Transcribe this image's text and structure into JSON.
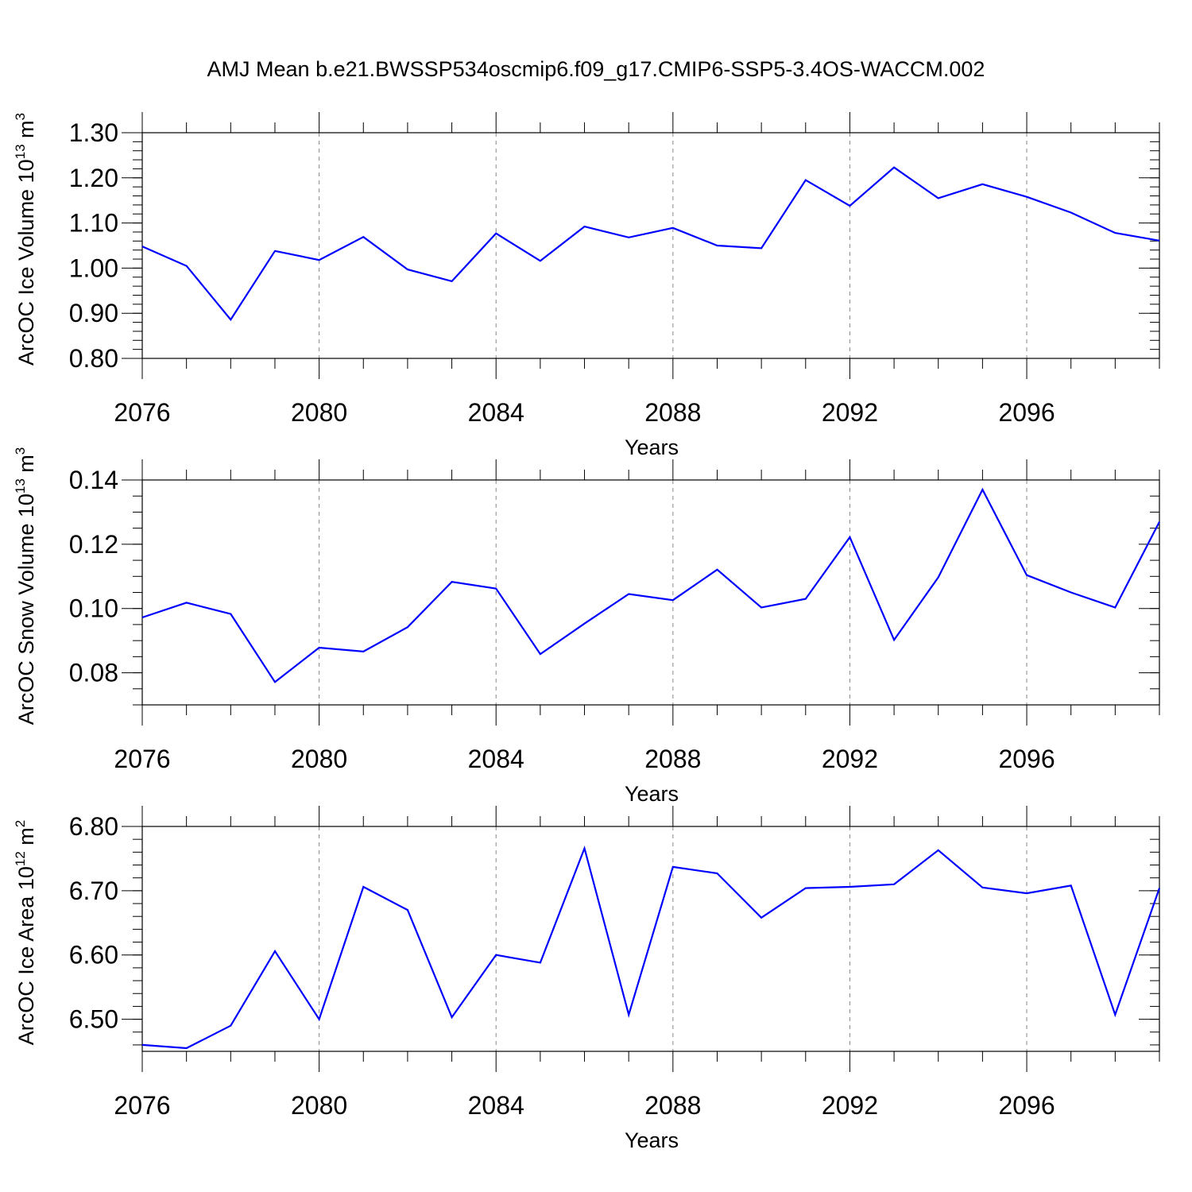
{
  "title": "AMJ Mean b.e21.BWSSP534oscmip6.f09_g17.CMIP6-SSP5-3.4OS-WACCM.002",
  "colors": {
    "line": "#0000ff",
    "axis": "#000000",
    "grid": "#888888"
  },
  "chart_data": [
    {
      "type": "line",
      "ylabel": "ArcOC Ice Volume 10",
      "ylabel_exp": "13",
      "ylabel_unit": " m",
      "ylabel_unit_exp": "3",
      "xlabel": "Years",
      "xlim": [
        2076,
        2099
      ],
      "ylim": [
        0.8,
        1.3
      ],
      "yticks": [
        0.8,
        0.9,
        1.0,
        1.1,
        1.2,
        1.3
      ],
      "ytick_labels": [
        "0.80",
        "0.90",
        "1.00",
        "1.10",
        "1.20",
        "1.30"
      ],
      "yminor": 0.02,
      "xticks": [
        2076,
        2080,
        2084,
        2088,
        2092,
        2096
      ],
      "xtick_labels": [
        "2076",
        "2080",
        "2084",
        "2088",
        "2092",
        "2096"
      ],
      "grid": "vertical dashed",
      "x": [
        2076,
        2077,
        2078,
        2079,
        2080,
        2081,
        2082,
        2083,
        2084,
        2085,
        2086,
        2087,
        2088,
        2089,
        2090,
        2091,
        2092,
        2093,
        2094,
        2095,
        2096,
        2097,
        2098,
        2099
      ],
      "values": [
        1.048,
        1.005,
        0.886,
        1.038,
        1.018,
        1.069,
        0.997,
        0.971,
        1.077,
        1.016,
        1.092,
        1.068,
        1.089,
        1.05,
        1.044,
        1.195,
        1.138,
        1.223,
        1.155,
        1.186,
        1.158,
        1.123,
        1.078,
        1.061
      ]
    },
    {
      "type": "line",
      "ylabel": "ArcOC Snow Volume 10",
      "ylabel_exp": "13",
      "ylabel_unit": " m",
      "ylabel_unit_exp": "3",
      "xlabel": "Years",
      "xlim": [
        2076,
        2099
      ],
      "ylim": [
        0.07,
        0.14
      ],
      "yticks": [
        0.08,
        0.1,
        0.12,
        0.14
      ],
      "ytick_labels": [
        "0.08",
        "0.10",
        "0.12",
        "0.14"
      ],
      "yminor": 0.005,
      "xticks": [
        2076,
        2080,
        2084,
        2088,
        2092,
        2096
      ],
      "xtick_labels": [
        "2076",
        "2080",
        "2084",
        "2088",
        "2092",
        "2096"
      ],
      "grid": "vertical dashed",
      "x": [
        2076,
        2077,
        2078,
        2079,
        2080,
        2081,
        2082,
        2083,
        2084,
        2085,
        2086,
        2087,
        2088,
        2089,
        2090,
        2091,
        2092,
        2093,
        2094,
        2095,
        2096,
        2097,
        2098,
        2099
      ],
      "values": [
        0.0972,
        0.1018,
        0.0983,
        0.0771,
        0.0878,
        0.0866,
        0.0942,
        0.1083,
        0.1062,
        0.0858,
        0.0953,
        0.1045,
        0.1026,
        0.1121,
        0.1003,
        0.103,
        0.1222,
        0.0902,
        0.1097,
        0.137,
        0.1104,
        0.105,
        0.1003,
        0.127
      ]
    },
    {
      "type": "line",
      "ylabel": "ArcOC Ice Area 10",
      "ylabel_exp": "12",
      "ylabel_unit": " m",
      "ylabel_unit_exp": "2",
      "xlabel": "Years",
      "xlim": [
        2076,
        2099
      ],
      "ylim": [
        6.45,
        6.8
      ],
      "yticks": [
        6.5,
        6.6,
        6.7,
        6.8
      ],
      "ytick_labels": [
        "6.50",
        "6.60",
        "6.70",
        "6.80"
      ],
      "yminor": 0.02,
      "xticks": [
        2076,
        2080,
        2084,
        2088,
        2092,
        2096
      ],
      "xtick_labels": [
        "2076",
        "2080",
        "2084",
        "2088",
        "2092",
        "2096"
      ],
      "grid": "vertical dashed",
      "x": [
        2076,
        2077,
        2078,
        2079,
        2080,
        2081,
        2082,
        2083,
        2084,
        2085,
        2086,
        2087,
        2088,
        2089,
        2090,
        2091,
        2092,
        2093,
        2094,
        2095,
        2096,
        2097,
        2098,
        2099
      ],
      "values": [
        6.46,
        6.455,
        6.49,
        6.606,
        6.5,
        6.706,
        6.67,
        6.503,
        6.6,
        6.588,
        6.766,
        6.507,
        6.737,
        6.727,
        6.658,
        6.704,
        6.706,
        6.71,
        6.763,
        6.705,
        6.696,
        6.708,
        6.507,
        6.704
      ]
    }
  ]
}
